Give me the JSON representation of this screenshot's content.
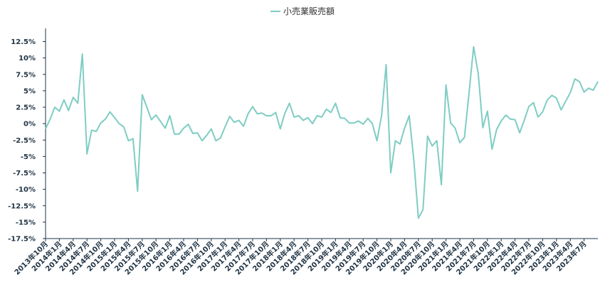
{
  "chart_data": {
    "type": "line",
    "title": "",
    "xlabel": "",
    "ylabel": "",
    "legend_position": "top-center",
    "grid": false,
    "colors": {
      "series": "#7ecdc4",
      "axis": "#1f3344",
      "text": "#333333"
    },
    "ylim": [
      -17.5,
      14.5
    ],
    "yticks": [
      12.5,
      10,
      7.5,
      5,
      2.5,
      0,
      -2.5,
      -5,
      -7.5,
      -10,
      -12.5,
      -15,
      -17.5
    ],
    "ytick_labels": [
      "12.5%",
      "10%",
      "7.5%",
      "5%",
      "2.5%",
      "0%",
      "-2.5%",
      "-5%",
      "-7.5%",
      "-10%",
      "-12.5%",
      "-15%",
      "-17.5%"
    ],
    "x_start": "2013-10",
    "xtick_labels": [
      "2013年10月",
      "2014年1月",
      "2014年4月",
      "2014年7月",
      "2014年10月",
      "2015年1月",
      "2015年4月",
      "2015年7月",
      "2015年10月",
      "2016年1月",
      "2016年4月",
      "2016年7月",
      "2016年10月",
      "2017年1月",
      "2017年4月",
      "2017年7月",
      "2017年10月",
      "2018年1月",
      "2018年4月",
      "2018年7月",
      "2018年10月",
      "2019年1月",
      "2019年4月",
      "2019年7月",
      "2019年10月",
      "2020年1月",
      "2020年4月",
      "2020年7月",
      "2020年10月",
      "2021年1月",
      "2021年4月",
      "2021年7月",
      "2021年10月",
      "2022年1月",
      "2022年4月",
      "2022年7月",
      "2022年10月",
      "2023年1月",
      "2023年4月",
      "2023年7月"
    ],
    "series": [
      {
        "name": "小売業販売額",
        "values": [
          -0.8,
          0.7,
          2.5,
          1.9,
          3.6,
          2.0,
          4.0,
          3.1,
          10.6,
          -4.6,
          -1.0,
          -1.2,
          0.1,
          0.7,
          1.8,
          0.9,
          0.0,
          -0.5,
          -2.6,
          -2.3,
          -10.3,
          4.4,
          2.5,
          0.6,
          1.3,
          0.3,
          -0.7,
          1.2,
          -1.6,
          -1.6,
          -0.7,
          -0.1,
          -1.5,
          -1.4,
          -2.6,
          -1.8,
          -0.8,
          -2.6,
          -2.2,
          -0.5,
          1.1,
          0.2,
          0.5,
          -0.4,
          1.5,
          2.6,
          1.5,
          1.6,
          1.2,
          1.2,
          1.7,
          -0.8,
          1.6,
          3.1,
          1.0,
          1.2,
          0.5,
          0.9,
          0.0,
          1.2,
          1.0,
          2.2,
          1.7,
          3.1,
          0.9,
          0.8,
          0.1,
          0.1,
          0.4,
          -0.1,
          0.8,
          0.0,
          -2.6,
          1.2,
          9.0,
          -7.5,
          -2.6,
          -3.1,
          -0.7,
          1.2,
          -5.4,
          -14.4,
          -13.1,
          -1.9,
          -3.4,
          -2.6,
          -9.3,
          5.9,
          0.1,
          -0.7,
          -2.9,
          -2.1,
          4.6,
          11.7,
          7.6,
          -0.6,
          1.9,
          -3.9,
          -0.9,
          0.4,
          1.3,
          0.7,
          0.6,
          -1.4,
          0.5,
          2.6,
          3.2,
          1.0,
          1.8,
          3.6,
          4.3,
          3.9,
          2.1,
          3.4,
          4.7,
          6.8,
          6.4,
          4.8,
          5.4,
          5.1,
          6.4
        ]
      }
    ]
  }
}
